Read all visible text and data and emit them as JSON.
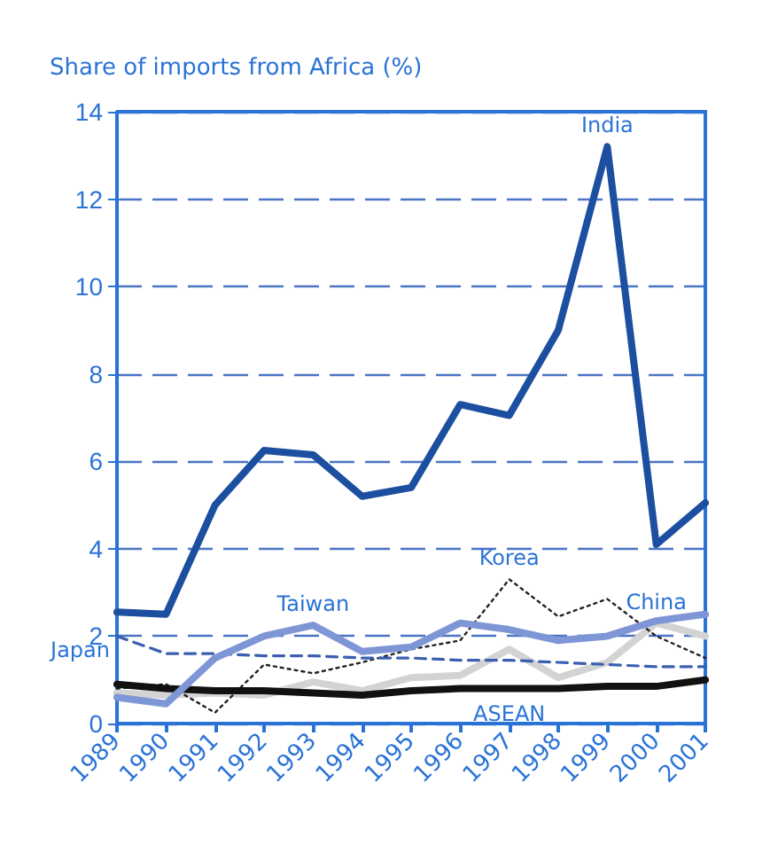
{
  "chart_data": {
    "type": "line",
    "ylabel": "Share of imports from Africa (%)",
    "categories": [
      "1989",
      "1990",
      "1991",
      "1992",
      "1993",
      "1994",
      "1995",
      "1996",
      "1997",
      "1998",
      "1999",
      "2000",
      "2001"
    ],
    "ylim": [
      0,
      14
    ],
    "yticks": [
      0,
      2,
      4,
      6,
      8,
      10,
      12,
      14
    ],
    "grid": "y",
    "marker": "none",
    "series": [
      {
        "color": "#1c4f9f",
        "line_style": "solid",
        "values": [
          2.55,
          2.5,
          5.0,
          6.25,
          6.15,
          5.2,
          5.4,
          7.3,
          7.05,
          9.0,
          13.2,
          4.1,
          5.05
        ]
      },
      {
        "color": "#d3d3d3",
        "line_style": "solid",
        "values": [
          0.7,
          0.65,
          0.7,
          0.65,
          0.95,
          0.75,
          1.05,
          1.1,
          1.7,
          1.05,
          1.4,
          2.3,
          2.0
        ]
      },
      {
        "color": "#222222",
        "line_style": "dotted",
        "values": [
          0.8,
          0.9,
          0.25,
          1.35,
          1.15,
          1.4,
          1.7,
          1.9,
          3.3,
          2.45,
          2.85,
          2.0,
          1.5
        ]
      },
      {
        "color": "#3a5fb0",
        "line_style": "dashed",
        "values": [
          2.0,
          1.6,
          1.6,
          1.55,
          1.55,
          1.5,
          1.5,
          1.45,
          1.45,
          1.4,
          1.35,
          1.3,
          1.3
        ]
      },
      {
        "color": "#111111",
        "line_style": "solid",
        "values": [
          0.9,
          0.8,
          0.75,
          0.75,
          0.7,
          0.65,
          0.75,
          0.8,
          0.8,
          0.8,
          0.85,
          0.85,
          1.0
        ]
      },
      {
        "color": "#7f96d6",
        "line_style": "solid",
        "values": [
          0.6,
          0.45,
          1.5,
          2.0,
          2.25,
          1.65,
          1.75,
          2.3,
          2.15,
          1.9,
          2.0,
          2.35,
          2.5
        ]
      }
    ],
    "annotations": [
      {
        "text": "India",
        "x": "1999",
        "y": 13.2
      },
      {
        "text": "Korea",
        "x": "1997",
        "y": 3.3
      },
      {
        "text": "Taiwan",
        "x": "1993",
        "y": 2.25
      },
      {
        "text": "China",
        "x": "2000",
        "y": 2.3
      },
      {
        "text": "Japan",
        "x": "1989",
        "y": 2.0
      },
      {
        "text": "ASEAN",
        "x": "1997",
        "y": 0.8
      }
    ]
  }
}
